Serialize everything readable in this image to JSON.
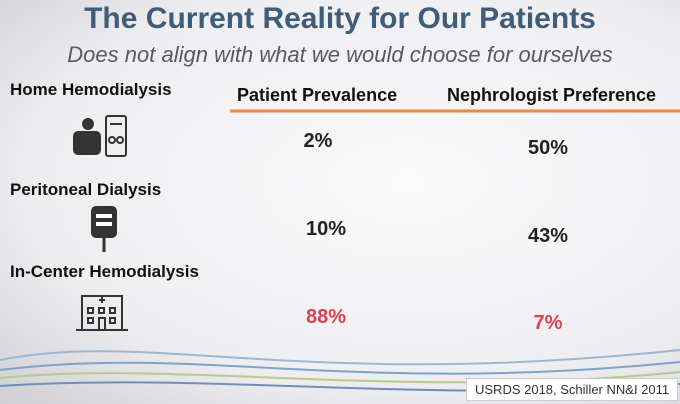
{
  "header": {
    "title": "The Current Reality for Our Patients",
    "subtitle": "Does not align with what we would choose for ourselves"
  },
  "table": {
    "columns": [
      "Patient Prevalence",
      "Nephrologist Preference"
    ],
    "rows": [
      {
        "label": "Home Hemodialysis",
        "values": [
          "2%",
          "50%"
        ]
      },
      {
        "label": "Peritoneal Dialysis",
        "values": [
          "10%",
          "43%"
        ]
      },
      {
        "label": "In-Center Hemodialysis",
        "values": [
          "88%",
          "7%"
        ]
      }
    ]
  },
  "footer": {
    "source": "USRDS 2018, Schiller NN&I 2011"
  }
}
